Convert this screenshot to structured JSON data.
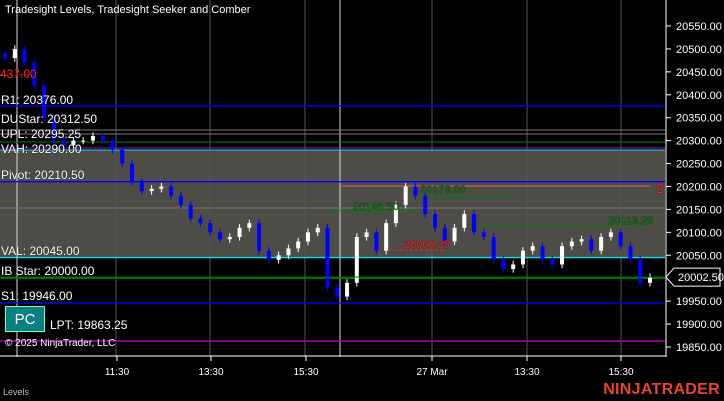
{
  "title": "Tradesight Levels, Tradesight Seeker and Comber",
  "panel_label": "Levels",
  "copyright": "© 2025 NinjaTrader, LLC",
  "brand": "NINJATRADER",
  "pc_button": "PC",
  "current_price": "20002.50",
  "level_labels": {
    "partial_top": "437.00",
    "r1": "R1: 20376.00",
    "overlap_1": "DUStar: 20312.50",
    "overlap_2": "UPL: 20295.25",
    "vah": "VAH: 20290.00",
    "pivot": "Pivot: 20210.50",
    "val": "VAL: 20045.00",
    "ib_star": "IB Star: 20000.00",
    "s1": "S1: 19946.00",
    "lpt": "LPT: 19863.25",
    "seeker_1": "20178.00",
    "seeker_2": "20146.50",
    "seeker_3": "20113.25",
    "seeker_red": "20060.25",
    "count_red": "2"
  },
  "colors": {
    "up": "#ffffff",
    "down": "#0000ff",
    "pivot": "#0000ff",
    "val": "#00e5ee",
    "shade": "#4e4c47",
    "green": "#008000",
    "red": "#ff2020",
    "magenta": "#c000c0",
    "brand": "#e8452c"
  },
  "chart_data": {
    "type": "candlestick",
    "title": "Tradesight Levels, Tradesight Seeker and Comber",
    "ylim": [
      19850,
      20550
    ],
    "y_ticks": [
      "20550.00",
      "20500.00",
      "20450.00",
      "20400.00",
      "20350.00",
      "20300.00",
      "20250.00",
      "20200.00",
      "20150.00",
      "20100.00",
      "20050.00",
      "19950.00",
      "19900.00",
      "19850.00"
    ],
    "x_ticks": [
      "11:30",
      "13:30",
      "15:30",
      "27 Mar",
      "13:30",
      "15:30"
    ],
    "closes": [
      20480,
      20500,
      20470,
      20420,
      20350,
      20300,
      20290,
      20300,
      20300,
      20310,
      20300,
      20280,
      20250,
      20210,
      20190,
      20195,
      20200,
      20180,
      20160,
      20130,
      20120,
      20100,
      20085,
      20090,
      20110,
      20120,
      20060,
      20040,
      20050,
      20065,
      20080,
      20100,
      20110,
      19980,
      19960,
      19990,
      20090,
      20100,
      20060,
      20120,
      20160,
      20200,
      20180,
      20140,
      20110,
      20080,
      20110,
      20140,
      20100,
      20090,
      20040,
      20020,
      20030,
      20060,
      20070,
      20040,
      20030,
      20070,
      20080,
      20085,
      20060,
      20090,
      20100,
      20070,
      20040,
      19990,
      20002.5
    ],
    "levels": [
      {
        "name": "R1",
        "value": 20376,
        "color": "#0000ff"
      },
      {
        "name": "Pivot",
        "value": 20210.5,
        "color": "#0000ff"
      },
      {
        "name": "VAL",
        "value": 20045,
        "color": "#00e5ee"
      },
      {
        "name": "IB Star",
        "value": 20000,
        "color": "#008000"
      },
      {
        "name": "S1",
        "value": 19946,
        "color": "#0000ff"
      },
      {
        "name": "LPT",
        "value": 19863.25,
        "color": "#c000c0"
      }
    ]
  }
}
